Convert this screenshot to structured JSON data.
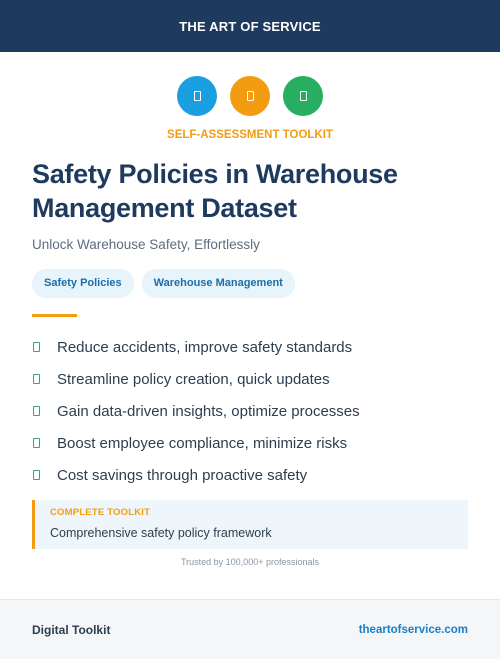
{
  "header": {
    "title": "THE ART OF SERVICE"
  },
  "icons": [
    {
      "name": "document-icon",
      "color": "#1a9fe0"
    },
    {
      "name": "document-icon",
      "color": "#f39c12"
    },
    {
      "name": "document-icon",
      "color": "#27ae60"
    }
  ],
  "kicker": "SELF-ASSESSMENT TOOLKIT",
  "title": "Safety Policies in Warehouse Management Dataset",
  "subtitle": "Unlock Warehouse Safety, Effortlessly",
  "tags": [
    "Safety Policies",
    "Warehouse Management"
  ],
  "benefits": [
    "Reduce accidents, improve safety standards",
    "Streamline policy creation, quick updates",
    "Gain data-driven insights, optimize processes",
    "Boost employee compliance, minimize risks",
    "Cost savings through proactive safety"
  ],
  "callout": {
    "label": "COMPLETE TOOLKIT",
    "text": "Comprehensive safety policy framework"
  },
  "trust": "Trusted by 100,000+ professionals",
  "footer": {
    "left": "Digital Toolkit",
    "right": "theartofservice.com"
  },
  "colors": {
    "brand_navy": "#1e3a5f",
    "accent_orange": "#f39c12",
    "check_green": "#27ae60",
    "link_blue": "#1a7fc4"
  }
}
